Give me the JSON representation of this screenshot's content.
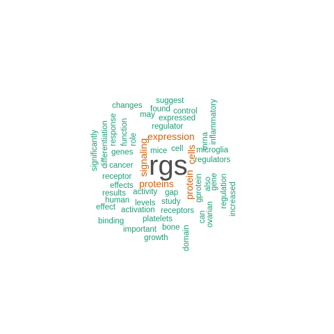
{
  "words": [
    {
      "id": "rgs",
      "text": "rgs",
      "tier": 3
    },
    {
      "id": "expression",
      "text": "expression",
      "tier": 2
    },
    {
      "id": "proteins",
      "text": "proteins",
      "tier": 2
    },
    {
      "id": "signaling",
      "text": "signaling",
      "tier": 2
    },
    {
      "id": "protein",
      "text": "protein",
      "tier": 2
    },
    {
      "id": "cells",
      "text": "cells",
      "tier": 2
    },
    {
      "id": "suggest",
      "text": "suggest",
      "tier": 1
    },
    {
      "id": "changes",
      "text": "changes",
      "tier": 1
    },
    {
      "id": "found",
      "text": "found",
      "tier": 1
    },
    {
      "id": "control",
      "text": "control",
      "tier": 1
    },
    {
      "id": "may",
      "text": "may",
      "tier": 1
    },
    {
      "id": "expressed",
      "text": "expressed",
      "tier": 1
    },
    {
      "id": "regulator",
      "text": "regulator",
      "tier": 1
    },
    {
      "id": "mrna",
      "text": "mrna",
      "tier": 1
    },
    {
      "id": "inflammatory",
      "text": "inflammatory",
      "tier": 1
    },
    {
      "id": "role",
      "text": "role",
      "tier": 1
    },
    {
      "id": "function",
      "text": "function",
      "tier": 1
    },
    {
      "id": "response",
      "text": "response",
      "tier": 1
    },
    {
      "id": "differentiation",
      "text": "differentiation",
      "tier": 1
    },
    {
      "id": "significantly",
      "text": "significantly",
      "tier": 1
    },
    {
      "id": "genes",
      "text": "genes",
      "tier": 1
    },
    {
      "id": "mice",
      "text": "mice",
      "tier": 1
    },
    {
      "id": "cell",
      "text": "cell",
      "tier": 1
    },
    {
      "id": "microglia",
      "text": "microglia",
      "tier": 1
    },
    {
      "id": "cancer",
      "text": "cancer",
      "tier": 1
    },
    {
      "id": "regulators",
      "text": "regulators",
      "tier": 1
    },
    {
      "id": "receptor",
      "text": "receptor",
      "tier": 1
    },
    {
      "id": "effects",
      "text": "effects",
      "tier": 1
    },
    {
      "id": "results",
      "text": "results",
      "tier": 1
    },
    {
      "id": "activity",
      "text": "activity",
      "tier": 1
    },
    {
      "id": "gap",
      "text": "gap",
      "tier": 1
    },
    {
      "id": "also",
      "text": "also",
      "tier": 1
    },
    {
      "id": "gene",
      "text": "gene",
      "tier": 1
    },
    {
      "id": "gprotein",
      "text": "gprotein",
      "tier": 1
    },
    {
      "id": "human",
      "text": "human",
      "tier": 1
    },
    {
      "id": "levels",
      "text": "levels",
      "tier": 1
    },
    {
      "id": "study",
      "text": "study",
      "tier": 1
    },
    {
      "id": "effect",
      "text": "effect",
      "tier": 1
    },
    {
      "id": "activation",
      "text": "activation",
      "tier": 1
    },
    {
      "id": "receptors",
      "text": "receptors",
      "tier": 1
    },
    {
      "id": "regulation",
      "text": "regulation",
      "tier": 1
    },
    {
      "id": "increased",
      "text": "increased",
      "tier": 1
    },
    {
      "id": "can",
      "text": "can",
      "tier": 1
    },
    {
      "id": "ovarian",
      "text": "ovarian",
      "tier": 1
    },
    {
      "id": "binding",
      "text": "binding",
      "tier": 1
    },
    {
      "id": "platelets",
      "text": "platelets",
      "tier": 1
    },
    {
      "id": "important",
      "text": "important",
      "tier": 1
    },
    {
      "id": "bone",
      "text": "bone",
      "tier": 1
    },
    {
      "id": "domain",
      "text": "domain",
      "tier": 1
    },
    {
      "id": "growth",
      "text": "growth",
      "tier": 1
    }
  ],
  "colors": {
    "tier1": "#1b9e77",
    "tier2": "#d95f02",
    "tier3": "#4d4d4d",
    "background": "#ffffff"
  }
}
